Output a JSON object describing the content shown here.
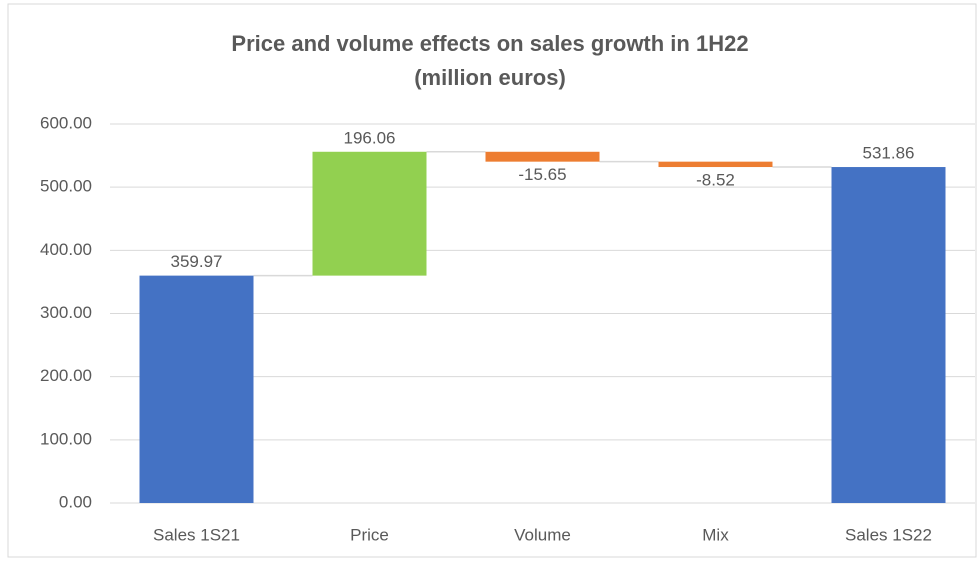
{
  "chart_data": {
    "type": "waterfall",
    "title": "Price and volume effects on sales growth in 1H22",
    "subtitle": "(million euros)",
    "categories": [
      "Sales 1S21",
      "Price",
      "Volume",
      "Mix",
      "Sales 1S22"
    ],
    "values": [
      359.97,
      196.06,
      -15.65,
      -8.52,
      531.86
    ],
    "totals": [
      true,
      false,
      false,
      false,
      true
    ],
    "colors": {
      "increase": "#92d050",
      "decrease": "#ed7d31",
      "total": "#4472c4"
    },
    "ylim": [
      0,
      600
    ],
    "yticks": [
      {
        "value": 0,
        "label": "0.00"
      },
      {
        "value": 100,
        "label": "100.00"
      },
      {
        "value": 200,
        "label": "200.00"
      },
      {
        "value": 300,
        "label": "300.00"
      },
      {
        "value": 400,
        "label": "400.00"
      },
      {
        "value": 500,
        "label": "500.00"
      },
      {
        "value": 600,
        "label": "600.00"
      }
    ],
    "grid": true
  }
}
